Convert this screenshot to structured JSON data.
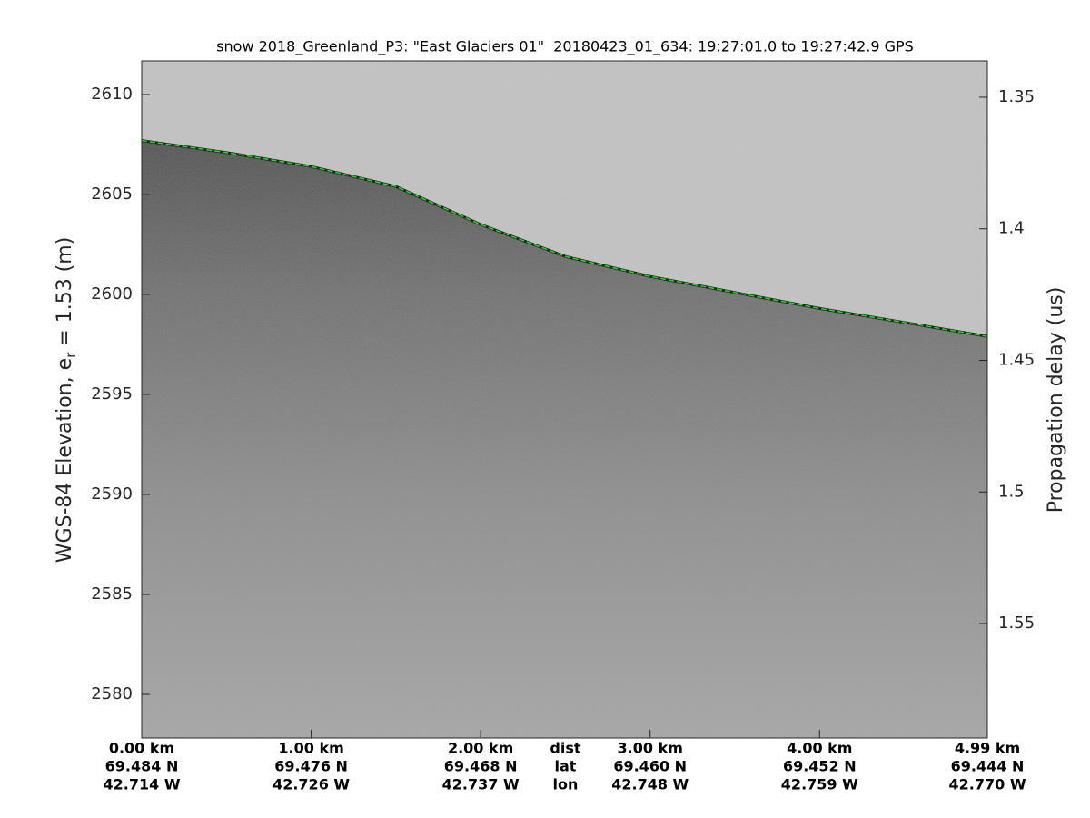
{
  "chart_data": {
    "type": "radar-echogram",
    "title": "snow 2018_Greenland_P3: \"East Glaciers 01\"  20180423_01_634: 19:27:01.0 to 19:27:42.9 GPS",
    "y_label": {
      "text": "WGS-84 Elevation, e",
      "subscript": "r",
      "suffix": " = 1.53 (m)"
    },
    "y2_label": "Propagation delay (us)",
    "xlim": [
      0,
      4.99
    ],
    "ylim": [
      2577.82,
      2611.68
    ],
    "yticks": [
      2580,
      2585,
      2590,
      2595,
      2600,
      2605,
      2610
    ],
    "y2lim": [
      1.3362,
      1.5935
    ],
    "y2ticks": [
      1.35,
      1.4,
      1.45,
      1.5,
      1.55
    ],
    "xticks": [
      {
        "value": 0,
        "label": "0.00 km"
      },
      {
        "value": 1,
        "label": "1.00 km"
      },
      {
        "value": 2,
        "label": "2.00 km"
      },
      {
        "value": 3,
        "label": "3.00 km"
      },
      {
        "value": 4,
        "label": "4.00 km"
      },
      {
        "value": 4.99,
        "label": "4.99 km"
      }
    ],
    "lat_labels": [
      "69.484 N",
      "69.476 N",
      "69.468 N",
      "69.460 N",
      "69.452 N",
      "69.444 N"
    ],
    "lon_labels": [
      "42.714 W",
      "42.726 W",
      "42.737 W",
      "42.748 W",
      "42.759 W",
      "42.770 W"
    ],
    "x_row_titles": [
      "dist",
      "lat",
      "lon"
    ],
    "surface": {
      "color": "#22dd22",
      "x": [
        0,
        0.5,
        1,
        1.5,
        2,
        2.5,
        3,
        3.5,
        4,
        4.5,
        4.99
      ],
      "values": [
        2607.7,
        2607.1,
        2606.4,
        2605.4,
        2603.5,
        2601.9,
        2600.9,
        2600.1,
        2599.3,
        2598.6,
        2597.9
      ]
    }
  }
}
